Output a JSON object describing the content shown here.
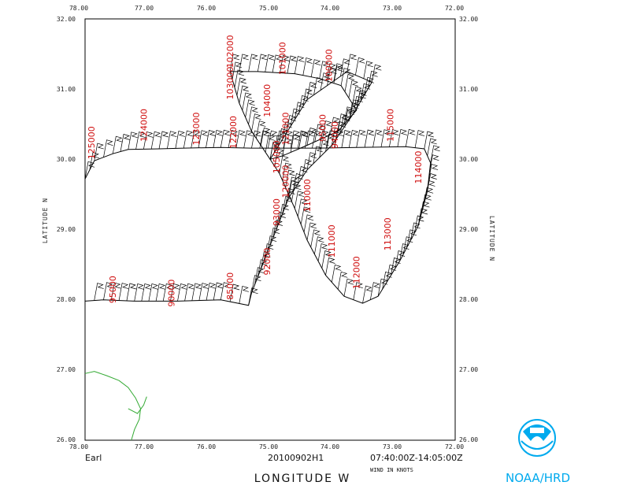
{
  "axes": {
    "lon_ticks": [
      "78.00",
      "77.00",
      "76.00",
      "75.00",
      "74.00",
      "73.00",
      "72.00"
    ],
    "lat_ticks": [
      "32.00",
      "31.00",
      "30.00",
      "29.00",
      "28.00",
      "27.00",
      "26.00"
    ],
    "y_title_left": "LATITUDE  N",
    "y_title_right": "LATITUDE  N",
    "x_title": "LONGITUDE  W"
  },
  "footer": {
    "storm": "Earl",
    "flight": "20100902H1",
    "time_range": "07:40:00Z-14:05:00Z",
    "units_note": "WIND IN KNOTS",
    "agency": "NOAA/HRD"
  },
  "colors": {
    "track": "#000000",
    "time_label": "#d01010",
    "coastline": "#33aa33",
    "logo": "#00aaee"
  },
  "chart_data": {
    "type": "map",
    "projection": "lon-lat",
    "xlim": [
      -78.0,
      -72.0
    ],
    "ylim": [
      26.0,
      32.0
    ],
    "track": [
      [
        -78.0,
        29.72
      ],
      [
        -77.85,
        29.98
      ],
      [
        -77.55,
        30.08
      ],
      [
        -77.3,
        30.14
      ],
      [
        -76.8,
        30.15
      ],
      [
        -76.4,
        30.16
      ],
      [
        -75.8,
        30.17
      ],
      [
        -75.3,
        30.16
      ],
      [
        -74.9,
        30.16
      ],
      [
        -74.2,
        30.16
      ],
      [
        -73.6,
        30.17
      ],
      [
        -72.8,
        30.18
      ],
      [
        -72.5,
        30.15
      ],
      [
        -72.4,
        29.95
      ],
      [
        -72.45,
        29.55
      ],
      [
        -72.6,
        29.05
      ],
      [
        -72.9,
        28.55
      ],
      [
        -73.25,
        28.05
      ],
      [
        -73.5,
        27.95
      ],
      [
        -73.8,
        28.05
      ],
      [
        -74.1,
        28.35
      ],
      [
        -74.4,
        28.85
      ],
      [
        -74.6,
        29.3
      ],
      [
        -74.85,
        29.8
      ],
      [
        -75.0,
        30.0
      ],
      [
        -74.4,
        30.85
      ],
      [
        -73.75,
        31.25
      ],
      [
        -73.35,
        31.1
      ],
      [
        -73.65,
        30.65
      ],
      [
        -74.0,
        30.2
      ],
      [
        -74.4,
        29.85
      ],
      [
        -74.7,
        29.45
      ],
      [
        -74.9,
        29.0
      ],
      [
        -75.1,
        28.55
      ],
      [
        -75.3,
        28.1
      ],
      [
        -75.35,
        27.92
      ],
      [
        -75.8,
        28.0
      ],
      [
        -76.5,
        27.98
      ],
      [
        -77.2,
        27.98
      ],
      [
        -77.7,
        28.0
      ],
      [
        -78.0,
        27.98
      ]
    ],
    "loop_north": [
      [
        -75.65,
        31.25
      ],
      [
        -75.2,
        31.25
      ],
      [
        -74.6,
        31.22
      ],
      [
        -74.2,
        31.15
      ],
      [
        -73.85,
        31.05
      ],
      [
        -73.6,
        30.7
      ],
      [
        -73.9,
        30.4
      ],
      [
        -74.4,
        30.2
      ],
      [
        -74.8,
        30.05
      ],
      [
        -75.0,
        30.0
      ],
      [
        -75.3,
        30.4
      ],
      [
        -75.5,
        30.8
      ],
      [
        -75.65,
        31.25
      ]
    ],
    "time_labels": [
      {
        "text": "125000",
        "lon": -77.85,
        "lat": 30.0
      },
      {
        "text": "124000",
        "lon": -77.0,
        "lat": 30.25
      },
      {
        "text": "123000",
        "lon": -76.15,
        "lat": 30.2
      },
      {
        "text": "122000",
        "lon": -75.55,
        "lat": 30.15
      },
      {
        "text": "102000",
        "lon": -75.6,
        "lat": 31.3
      },
      {
        "text": "103000",
        "lon": -75.6,
        "lat": 30.85
      },
      {
        "text": "104000",
        "lon": -75.0,
        "lat": 30.6
      },
      {
        "text": "101000",
        "lon": -74.75,
        "lat": 31.2
      },
      {
        "text": "100000",
        "lon": -74.0,
        "lat": 31.1
      },
      {
        "text": "121000",
        "lon": -74.7,
        "lat": 30.2
      },
      {
        "text": "95000",
        "lon": -74.1,
        "lat": 30.25
      },
      {
        "text": "94000",
        "lon": -73.9,
        "lat": 30.15
      },
      {
        "text": "115000",
        "lon": -73.0,
        "lat": 30.25
      },
      {
        "text": "114000",
        "lon": -72.55,
        "lat": 29.65
      },
      {
        "text": "105000",
        "lon": -74.85,
        "lat": 29.8
      },
      {
        "text": "120000",
        "lon": -74.7,
        "lat": 29.45
      },
      {
        "text": "110000",
        "lon": -74.35,
        "lat": 29.25
      },
      {
        "text": "93000",
        "lon": -74.85,
        "lat": 29.05
      },
      {
        "text": "111000",
        "lon": -73.95,
        "lat": 28.6
      },
      {
        "text": "113000",
        "lon": -73.05,
        "lat": 28.7
      },
      {
        "text": "112000",
        "lon": -73.55,
        "lat": 28.15
      },
      {
        "text": "92000",
        "lon": -75.0,
        "lat": 28.35
      },
      {
        "text": "95000",
        "lon": -77.5,
        "lat": 27.95
      },
      {
        "text": "90000",
        "lon": -76.55,
        "lat": 27.9
      },
      {
        "text": "85000",
        "lon": -75.6,
        "lat": 28.0
      }
    ],
    "coastline": [
      [
        -78.0,
        26.95
      ],
      [
        -77.85,
        26.98
      ],
      [
        -77.65,
        26.92
      ],
      [
        -77.45,
        26.85
      ],
      [
        -77.3,
        26.75
      ],
      [
        -77.18,
        26.6
      ],
      [
        -77.1,
        26.45
      ],
      [
        -77.12,
        26.3
      ],
      [
        -77.2,
        26.15
      ],
      [
        -77.25,
        26.0
      ]
    ],
    "coastline_2": [
      [
        -77.3,
        26.45
      ],
      [
        -77.15,
        26.38
      ],
      [
        -77.05,
        26.5
      ],
      [
        -77.0,
        26.62
      ]
    ]
  }
}
